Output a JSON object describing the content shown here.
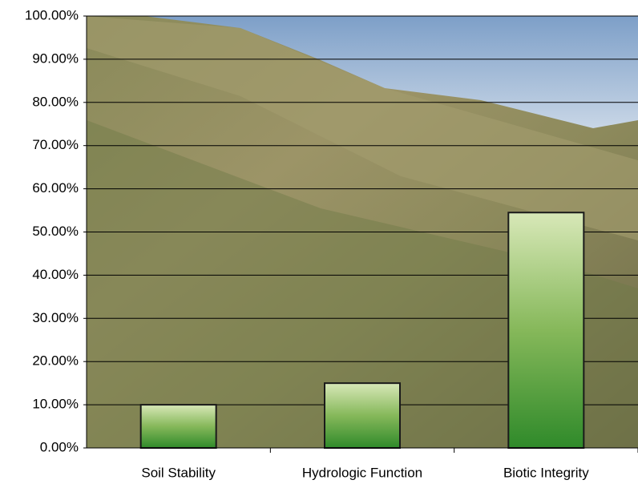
{
  "chart_data": {
    "type": "bar",
    "categories": [
      "Soil Stability",
      "Hydrologic Function",
      "Biotic Integrity"
    ],
    "values": [
      10.0,
      15.0,
      54.5
    ],
    "color": "#5f9a3c",
    "ylim": [
      0,
      100
    ],
    "yticks": [
      {
        "value": 0,
        "label": "0.00%"
      },
      {
        "value": 10,
        "label": "10.00%"
      },
      {
        "value": 20,
        "label": "20.00%"
      },
      {
        "value": 30,
        "label": "30.00%"
      },
      {
        "value": 40,
        "label": "40.00%"
      },
      {
        "value": 50,
        "label": "50.00%"
      },
      {
        "value": 60,
        "label": "60.00%"
      },
      {
        "value": 70,
        "label": "70.00%"
      },
      {
        "value": 80,
        "label": "80.00%"
      },
      {
        "value": 90,
        "label": "90.00%"
      },
      {
        "value": 100,
        "label": "100.00%"
      }
    ],
    "grid": true
  }
}
